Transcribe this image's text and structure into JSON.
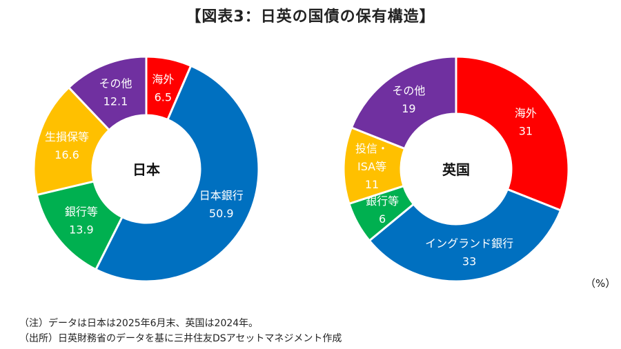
{
  "title": "【図表3：日英の国債の保有構造】",
  "unit_label": "（%）",
  "notes": [
    "（注）データは日本は2025年6月末、英国は2024年。",
    "（出所）日英財務省のデータを基に三井住友DSアセットマネジメント作成"
  ],
  "chart_data": [
    {
      "type": "pie",
      "center_label": "日本",
      "slices": [
        {
          "label": "海外",
          "value": 6.5,
          "color": "#FF0000"
        },
        {
          "label": "日本銀行",
          "value": 50.9,
          "color": "#0070C0"
        },
        {
          "label": "銀行等",
          "value": 13.9,
          "color": "#00B050"
        },
        {
          "label": "生損保等",
          "value": 16.6,
          "color": "#FFC000"
        },
        {
          "label": "その他",
          "value": 12.1,
          "color": "#7030A0"
        }
      ]
    },
    {
      "type": "pie",
      "center_label": "英国",
      "slices": [
        {
          "label": "海外",
          "value": 31,
          "color": "#FF0000"
        },
        {
          "label": "イングランド銀行",
          "value": 33,
          "color": "#0070C0"
        },
        {
          "label": "銀行等",
          "value": 6,
          "color": "#00B050"
        },
        {
          "label": "投信・ISA等",
          "value": 11,
          "color": "#FFC000"
        },
        {
          "label": "その他",
          "value": 19,
          "color": "#7030A0"
        }
      ]
    }
  ]
}
